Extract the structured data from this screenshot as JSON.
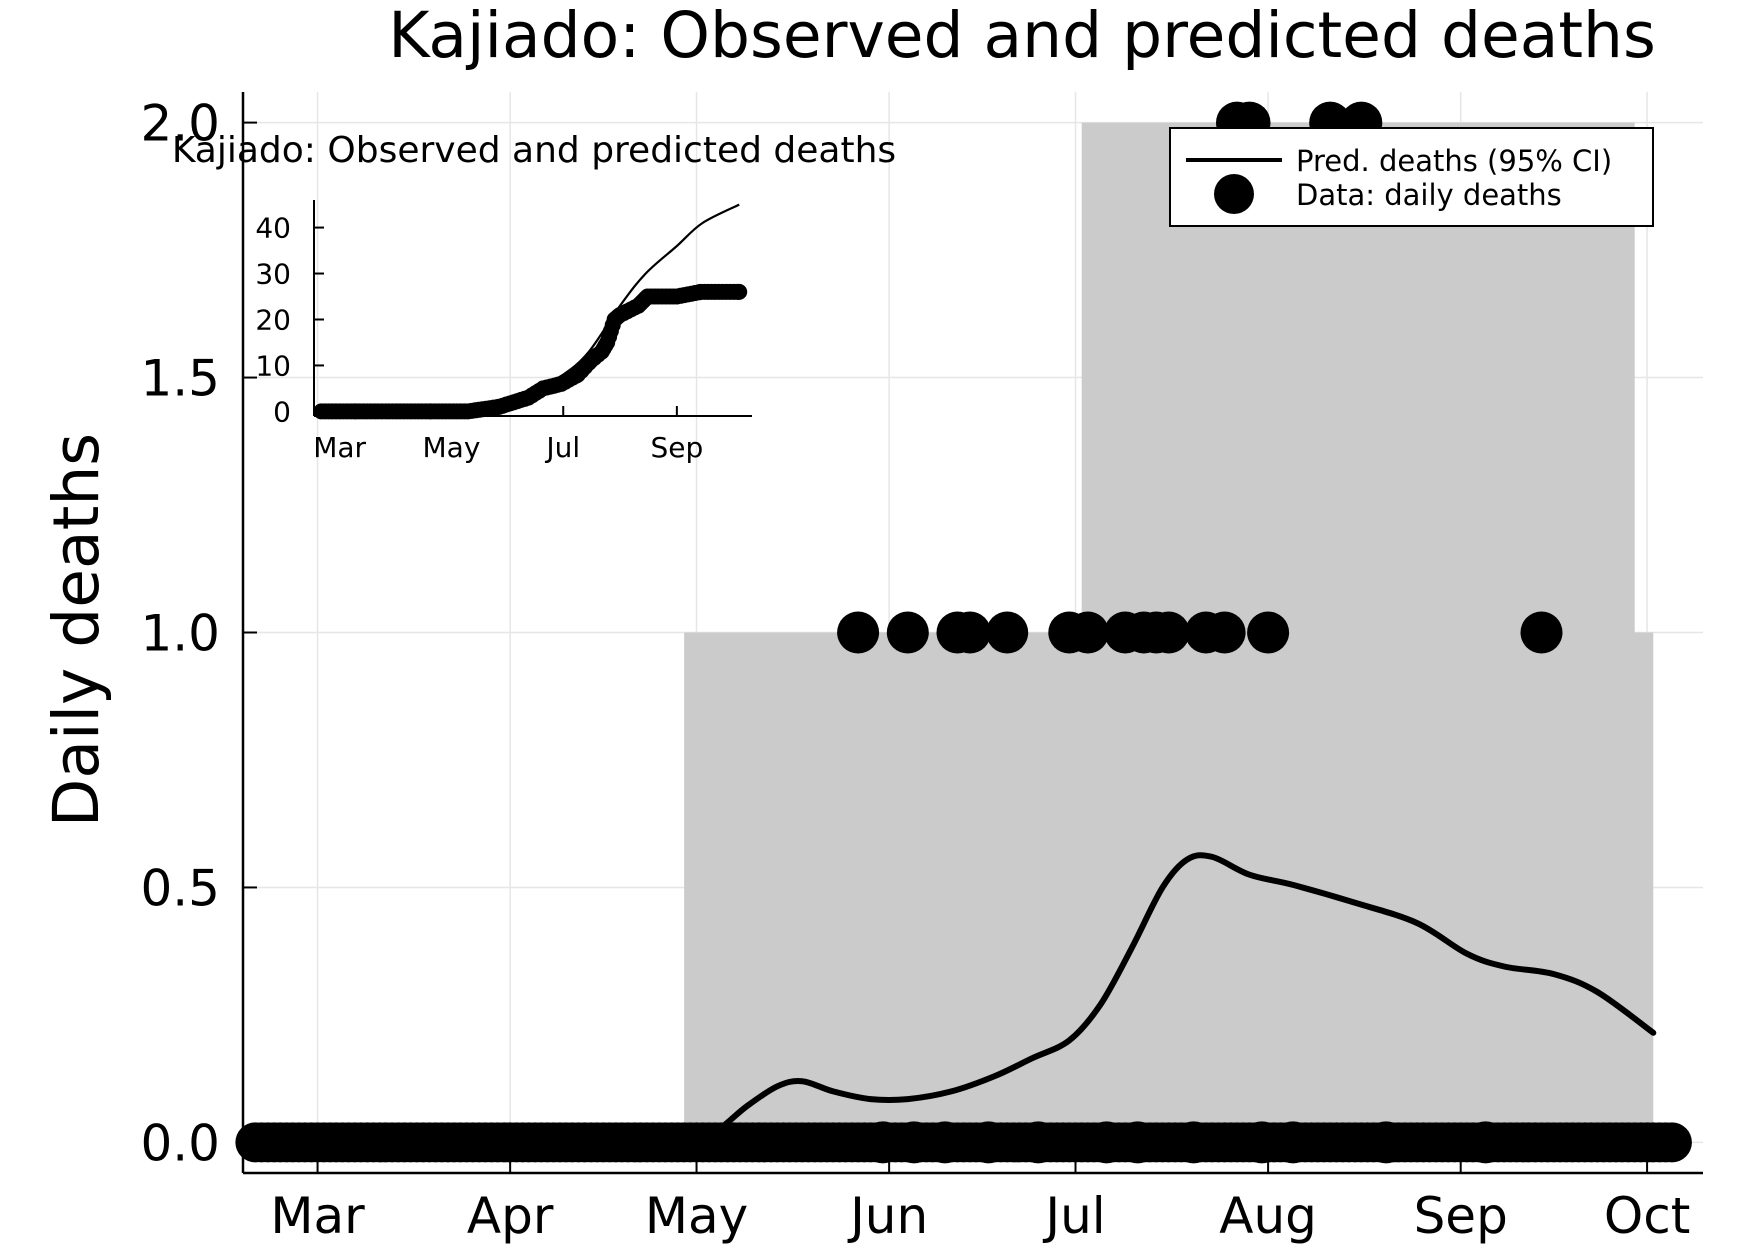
{
  "chart_data": [
    {
      "type": "line",
      "title": "Kajiado: Observed and predicted deaths",
      "xlabel": "",
      "ylabel": "Daily deaths",
      "x_ticks": [
        {
          "label": "Mar",
          "date": "2020-03-01"
        },
        {
          "label": "Apr",
          "date": "2020-04-01"
        },
        {
          "label": "May",
          "date": "2020-05-01"
        },
        {
          "label": "Jun",
          "date": "2020-06-01"
        },
        {
          "label": "Jul",
          "date": "2020-07-01"
        },
        {
          "label": "Aug",
          "date": "2020-08-01"
        },
        {
          "label": "Sep",
          "date": "2020-09-01"
        },
        {
          "label": "Oct",
          "date": "2020-10-01"
        }
      ],
      "y_ticks": [
        "0.0",
        "0.5",
        "1.0",
        "1.5",
        "2.0"
      ],
      "ylim": [
        -0.06,
        2.06
      ],
      "xlim": [
        "2020-02-18",
        "2020-10-10"
      ],
      "grid": true,
      "legend": {
        "position": "top-right",
        "entries": [
          {
            "label": "Pred. deaths (95% CI)",
            "marker": "line"
          },
          {
            "label": "Data: daily deaths",
            "marker": "dot"
          }
        ]
      },
      "series": [
        {
          "name": "Pred. deaths (95% CI)",
          "type": "line",
          "color": "#000000",
          "points": [
            [
              "2020-04-30",
              0.0
            ],
            [
              "2020-05-04",
              0.02
            ],
            [
              "2020-05-09",
              0.07
            ],
            [
              "2020-05-14",
              0.11
            ],
            [
              "2020-05-18",
              0.12
            ],
            [
              "2020-05-23",
              0.1
            ],
            [
              "2020-05-29",
              0.085
            ],
            [
              "2020-06-04",
              0.085
            ],
            [
              "2020-06-11",
              0.1
            ],
            [
              "2020-06-18",
              0.13
            ],
            [
              "2020-06-24",
              0.165
            ],
            [
              "2020-06-30",
              0.2
            ],
            [
              "2020-07-05",
              0.27
            ],
            [
              "2020-07-10",
              0.38
            ],
            [
              "2020-07-15",
              0.5
            ],
            [
              "2020-07-19",
              0.555
            ],
            [
              "2020-07-23",
              0.56
            ],
            [
              "2020-07-29",
              0.525
            ],
            [
              "2020-08-05",
              0.505
            ],
            [
              "2020-08-15",
              0.47
            ],
            [
              "2020-08-25",
              0.43
            ],
            [
              "2020-09-02",
              0.37
            ],
            [
              "2020-09-08",
              0.345
            ],
            [
              "2020-09-16",
              0.33
            ],
            [
              "2020-09-23",
              0.295
            ],
            [
              "2020-10-02",
              0.215
            ]
          ],
          "ci_band": [
            [
              "2020-04-29",
              0,
              0
            ],
            [
              "2020-04-29",
              0,
              1
            ],
            [
              "2020-07-02",
              0,
              1
            ],
            [
              "2020-07-02",
              0,
              2
            ],
            [
              "2020-09-29",
              0,
              2
            ],
            [
              "2020-09-29",
              0,
              1
            ],
            [
              "2020-10-02",
              0,
              1
            ],
            [
              "2020-10-02",
              0,
              0
            ]
          ]
        },
        {
          "name": "Data: daily deaths",
          "type": "scatter",
          "color": "#000000",
          "points": [
            [
              "2020-05-27",
              1
            ],
            [
              "2020-06-04",
              1
            ],
            [
              "2020-06-12",
              1
            ],
            [
              "2020-06-14",
              1
            ],
            [
              "2020-06-20",
              1
            ],
            [
              "2020-06-30",
              1
            ],
            [
              "2020-07-03",
              1
            ],
            [
              "2020-07-09",
              1
            ],
            [
              "2020-07-12",
              1
            ],
            [
              "2020-07-14",
              1
            ],
            [
              "2020-07-16",
              1
            ],
            [
              "2020-07-22",
              1
            ],
            [
              "2020-07-25",
              1
            ],
            [
              "2020-08-01",
              1
            ],
            [
              "2020-09-14",
              1
            ],
            [
              "2020-07-27",
              2
            ],
            [
              "2020-07-29",
              2
            ],
            [
              "2020-08-11",
              2
            ],
            [
              "2020-08-16",
              2
            ],
            [
              "2020-05-31",
              0
            ],
            [
              "2020-06-05",
              0
            ],
            [
              "2020-06-10",
              0
            ],
            [
              "2020-06-17",
              0
            ],
            [
              "2020-06-25",
              0
            ],
            [
              "2020-07-06",
              0
            ],
            [
              "2020-07-11",
              0
            ],
            [
              "2020-07-20",
              0
            ],
            [
              "2020-07-31",
              0
            ],
            [
              "2020-08-05",
              0
            ],
            [
              "2020-08-20",
              0
            ],
            [
              "2020-09-05",
              0
            ]
          ],
          "zero_run": [
            "2020-02-20",
            "2020-10-05"
          ]
        }
      ]
    },
    {
      "type": "line",
      "title": "Kajiado: Observed and predicted deaths",
      "xlabel": "",
      "ylabel": "",
      "x_ticks": [
        {
          "label": "Mar",
          "date": "2020-03-01"
        },
        {
          "label": "May",
          "date": "2020-05-01"
        },
        {
          "label": "Jul",
          "date": "2020-07-01"
        },
        {
          "label": "Sep",
          "date": "2020-09-01"
        }
      ],
      "y_ticks": [
        "0",
        "10",
        "20",
        "30",
        "40"
      ],
      "ylim": [
        -1,
        46
      ],
      "xlim": [
        "2020-02-16",
        "2020-10-12"
      ],
      "grid": false,
      "series": [
        {
          "name": "Pred. deaths (95% CI)",
          "type": "line",
          "points": [
            [
              "2020-02-20",
              0
            ],
            [
              "2020-05-01",
              0
            ],
            [
              "2020-05-15",
              1
            ],
            [
              "2020-06-01",
              3
            ],
            [
              "2020-06-15",
              5
            ],
            [
              "2020-07-01",
              8
            ],
            [
              "2020-07-15",
              13
            ],
            [
              "2020-08-01",
              23
            ],
            [
              "2020-08-15",
              30
            ],
            [
              "2020-09-01",
              36
            ],
            [
              "2020-09-15",
              41
            ],
            [
              "2020-10-05",
              45
            ]
          ]
        },
        {
          "name": "Data: daily deaths",
          "type": "scatter",
          "points": [
            [
              "2020-02-20",
              0
            ],
            [
              "2020-03-10",
              0
            ],
            [
              "2020-04-01",
              0
            ],
            [
              "2020-04-20",
              0
            ],
            [
              "2020-05-10",
              0
            ],
            [
              "2020-05-27",
              1
            ],
            [
              "2020-06-04",
              2
            ],
            [
              "2020-06-12",
              3
            ],
            [
              "2020-06-20",
              5
            ],
            [
              "2020-06-30",
              6
            ],
            [
              "2020-07-09",
              8
            ],
            [
              "2020-07-16",
              11
            ],
            [
              "2020-07-22",
              13
            ],
            [
              "2020-07-25",
              15
            ],
            [
              "2020-07-29",
              20
            ],
            [
              "2020-08-01",
              21
            ],
            [
              "2020-08-11",
              23
            ],
            [
              "2020-08-16",
              25
            ],
            [
              "2020-09-01",
              25
            ],
            [
              "2020-09-14",
              26
            ],
            [
              "2020-10-05",
              26
            ]
          ]
        }
      ]
    }
  ]
}
